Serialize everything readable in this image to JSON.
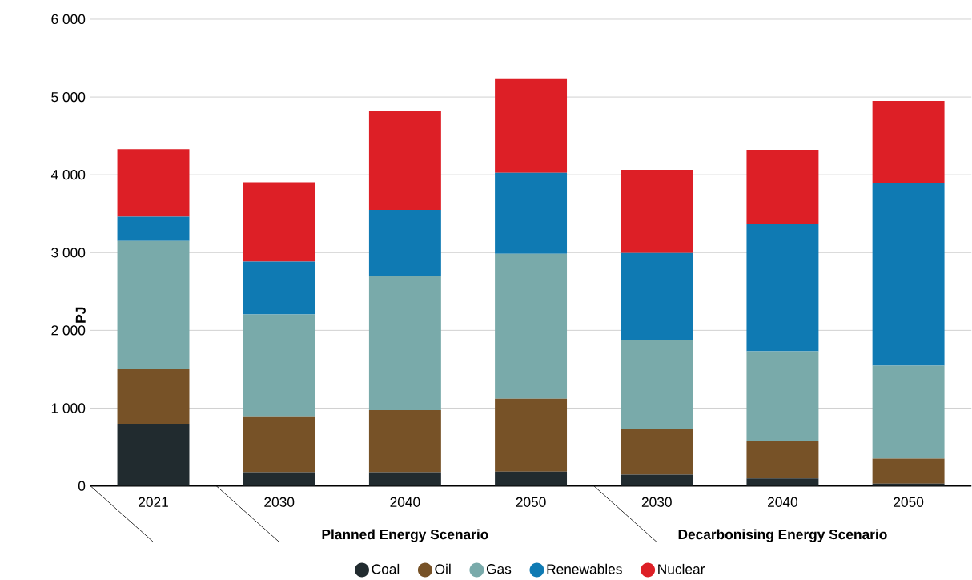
{
  "chart_data": {
    "type": "bar",
    "stacked": true,
    "ylabel": "PJ",
    "categories": [
      "2021",
      "2030",
      "2040",
      "2050",
      "2030",
      "2040",
      "2050"
    ],
    "series": [
      {
        "name": "Coal",
        "color": "#212b2f",
        "values": [
          800,
          175,
          175,
          185,
          145,
          95,
          30
        ]
      },
      {
        "name": "Oil",
        "color": "#775227",
        "values": [
          700,
          720,
          800,
          935,
          585,
          480,
          320
        ]
      },
      {
        "name": "Gas",
        "color": "#79aaaa",
        "values": [
          1650,
          1310,
          1730,
          1865,
          1145,
          1155,
          1195
        ]
      },
      {
        "name": "Renewables",
        "color": "#0f7ab3",
        "values": [
          310,
          680,
          845,
          1040,
          1120,
          1645,
          2345
        ]
      },
      {
        "name": "Nuclear",
        "color": "#dd1f26",
        "values": [
          870,
          1020,
          1265,
          1215,
          1070,
          945,
          1060
        ]
      }
    ],
    "annotations": [
      "Planned Energy Scenario",
      "Decarbonising Energy Scenario"
    ],
    "ylim": [
      0,
      6000
    ],
    "yticks": [
      0,
      {
        "value": 1000,
        "label": "1 000"
      },
      {
        "value": 2000,
        "label": "2 000"
      },
      {
        "value": 3000,
        "label": "3 000"
      },
      {
        "value": 4000,
        "label": "4 000"
      },
      {
        "value": 5000,
        "label": "5 000"
      },
      {
        "value": 6000,
        "label": "6 000"
      }
    ],
    "grid": "y",
    "legend": "bottom"
  }
}
